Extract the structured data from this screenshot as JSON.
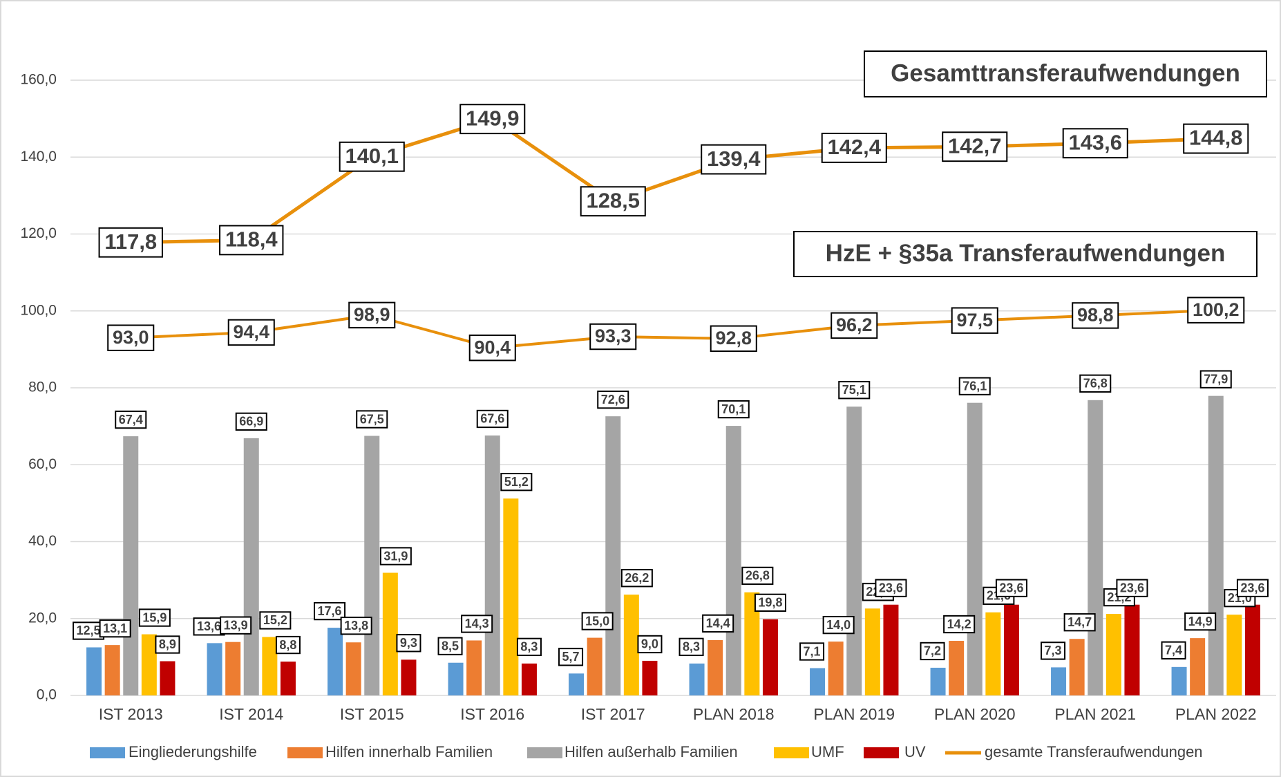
{
  "chart_data": {
    "type": "bar",
    "categories": [
      "IST 2013",
      "IST 2014",
      "IST 2015",
      "IST 2016",
      "IST 2017",
      "PLAN 2018",
      "PLAN 2019",
      "PLAN 2020",
      "PLAN 2021",
      "PLAN 2022"
    ],
    "series": [
      {
        "name": "Eingliederungshilfe",
        "color": "#5b9bd5",
        "values": [
          12.5,
          13.6,
          17.6,
          8.5,
          5.7,
          8.3,
          7.1,
          7.2,
          7.3,
          7.4
        ],
        "value_labels": [
          "12,5",
          "13,6",
          "17,6",
          "8,5",
          "5,7",
          "8,3",
          "7,1",
          "7,2",
          "7,3",
          "7,4"
        ]
      },
      {
        "name": "Hilfen innerhalb Familien",
        "color": "#ed7d31",
        "values": [
          13.1,
          13.9,
          13.8,
          14.3,
          15.0,
          14.4,
          14.0,
          14.2,
          14.7,
          14.9
        ],
        "value_labels": [
          "13,1",
          "13,9",
          "13,8",
          "14,3",
          "15,0",
          "14,4",
          "14,0",
          "14,2",
          "14,7",
          "14,9"
        ]
      },
      {
        "name": "Hilfen außerhalb Familien",
        "color": "#a5a5a5",
        "values": [
          67.4,
          66.9,
          67.5,
          67.6,
          72.6,
          70.1,
          75.1,
          76.1,
          76.8,
          77.9
        ],
        "value_labels": [
          "67,4",
          "66,9",
          "67,5",
          "67,6",
          "72,6",
          "70,1",
          "75,1",
          "76,1",
          "76,8",
          "77,9"
        ]
      },
      {
        "name": "UMF",
        "color": "#ffc000",
        "values": [
          15.9,
          15.2,
          31.9,
          51.2,
          26.2,
          26.8,
          22.6,
          21.6,
          21.2,
          21.0
        ],
        "value_labels": [
          "15,9",
          "15,2",
          "31,9",
          "51,2",
          "26,2",
          "26,8",
          "22,6",
          "21,6",
          "21,2",
          "21,0"
        ]
      },
      {
        "name": "UV",
        "color": "#c00000",
        "values": [
          8.9,
          8.8,
          9.3,
          8.3,
          9.0,
          19.8,
          23.6,
          23.6,
          23.6,
          23.6
        ],
        "value_labels": [
          "8,9",
          "8,8",
          "9,3",
          "8,3",
          "9,0",
          "19,8",
          "23,6",
          "23,6",
          "23,6",
          "23,6"
        ]
      }
    ],
    "line_series": [
      {
        "name": "gesamte Transferaufwendungen",
        "label": "Gesamttransferaufwendungen",
        "color": "#e8900c",
        "values": [
          117.8,
          118.4,
          140.1,
          149.9,
          128.5,
          139.4,
          142.4,
          142.7,
          143.6,
          144.8
        ],
        "value_labels": [
          "117,8",
          "118,4",
          "140,1",
          "149,9",
          "128,5",
          "139,4",
          "142,4",
          "142,7",
          "143,6",
          "144,8"
        ]
      },
      {
        "label": "HzE + §35a Transferaufwendungen",
        "color": "#e8900c",
        "values": [
          93.0,
          94.4,
          98.9,
          90.4,
          93.3,
          92.8,
          96.2,
          97.5,
          98.8,
          100.2
        ],
        "value_labels": [
          "93,0",
          "94,4",
          "98,9",
          "90,4",
          "93,3",
          "92,8",
          "96,2",
          "97,5",
          "98,8",
          "100,2"
        ]
      }
    ],
    "ylim": [
      0,
      160
    ],
    "yticks": [
      {
        "value": 0,
        "label": "0,0"
      },
      {
        "value": 20,
        "label": "20,0"
      },
      {
        "value": 40,
        "label": "40,0"
      },
      {
        "value": 60,
        "label": "60,0"
      },
      {
        "value": 80,
        "label": "80,0"
      },
      {
        "value": 100,
        "label": "100,0"
      },
      {
        "value": 120,
        "label": "120,0"
      },
      {
        "value": 140,
        "label": "140,0"
      },
      {
        "value": 160,
        "label": "160,0"
      }
    ],
    "grid": true,
    "legend": "bottom"
  }
}
